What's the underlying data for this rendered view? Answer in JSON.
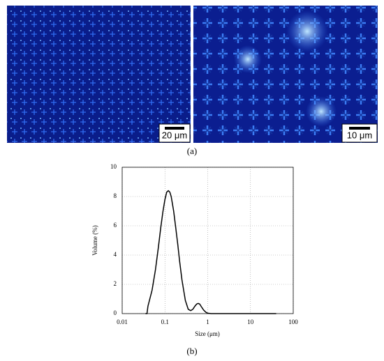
{
  "panel_a": {
    "scale_bars": [
      "20 μm",
      "10 μm"
    ],
    "caption": "(a)"
  },
  "panel_b": {
    "caption": "(b)"
  },
  "chart_data": {
    "type": "line",
    "x_label": "Size (μm)",
    "y_label": "Volume (%)",
    "x": [
      0.035,
      0.038,
      0.04,
      0.05,
      0.06,
      0.07,
      0.08,
      0.09,
      0.1,
      0.11,
      0.12,
      0.13,
      0.14,
      0.16,
      0.18,
      0.2,
      0.22,
      0.25,
      0.3,
      0.35,
      0.4,
      0.45,
      0.5,
      0.55,
      0.6,
      0.65,
      0.7,
      0.8,
      0.9,
      1.0,
      1.2,
      40
    ],
    "series": [
      {
        "name": "Volume",
        "color": "#000000",
        "values": [
          0,
          0,
          0.5,
          1.6,
          3.0,
          4.5,
          5.9,
          7.0,
          7.8,
          8.3,
          8.4,
          8.3,
          8.0,
          7.0,
          5.8,
          4.7,
          3.6,
          2.3,
          0.9,
          0.3,
          0.2,
          0.3,
          0.5,
          0.65,
          0.7,
          0.65,
          0.5,
          0.25,
          0.1,
          0.03,
          0,
          0
        ]
      }
    ],
    "xlim": [
      0.01,
      100
    ],
    "xticks": [
      0.01,
      0.1,
      1,
      10,
      100
    ],
    "log_x": true,
    "ylim": [
      0,
      10
    ],
    "yticks": [
      0,
      2,
      4,
      6,
      8,
      10
    ],
    "grid": true
  }
}
